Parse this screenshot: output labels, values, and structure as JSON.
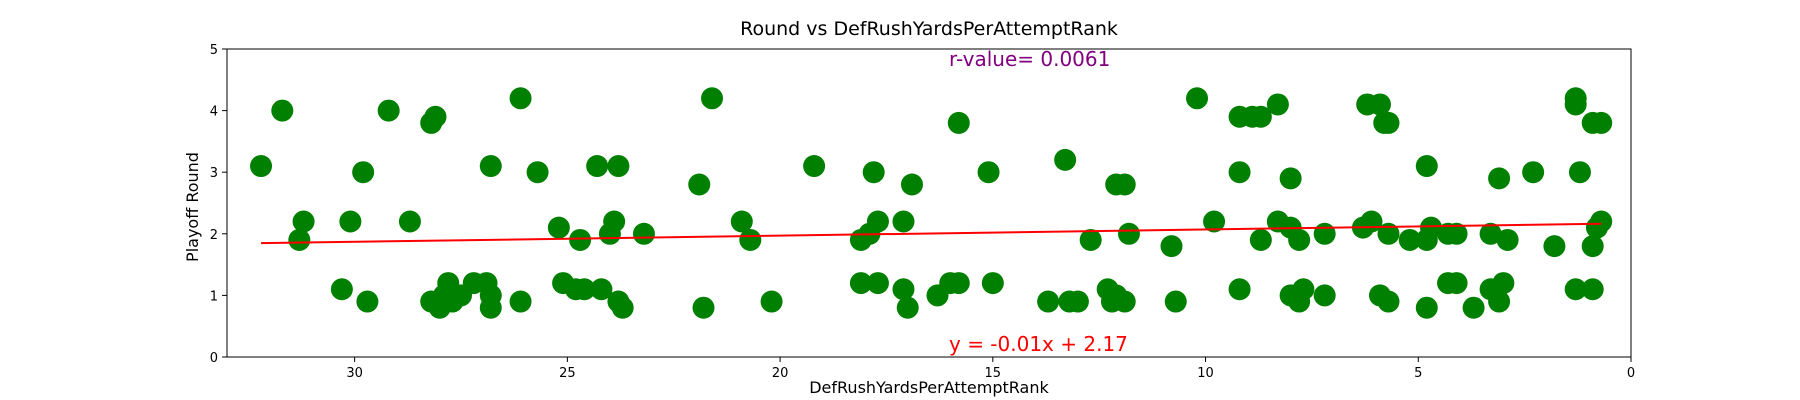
{
  "chart_data": {
    "type": "scatter",
    "title": "Round vs DefRushYardsPerAttemptRank",
    "xlabel": "DefRushYardsPerAttemptRank",
    "ylabel": "Playoff Round",
    "xlim": [
      33,
      0
    ],
    "ylim": [
      0,
      5
    ],
    "x_inverted": true,
    "xticks": [
      30,
      25,
      20,
      15,
      10,
      5,
      0
    ],
    "yticks": [
      0,
      1,
      2,
      3,
      4,
      5
    ],
    "grid": false,
    "point_color": "#008000",
    "fit_color": "#ff0000",
    "annotations": {
      "r_value": {
        "text": "r-value= 0.0061",
        "color": "#800080"
      },
      "equation": {
        "text": "y = -0.01x + 2.17",
        "color": "#ff0000"
      }
    },
    "fit_line": {
      "slope": -0.01,
      "intercept": 2.17,
      "x_range": [
        32.2,
        0.7
      ]
    },
    "points": [
      {
        "x": 32.2,
        "y": 3.1
      },
      {
        "x": 31.7,
        "y": 4.0
      },
      {
        "x": 31.3,
        "y": 1.9
      },
      {
        "x": 31.2,
        "y": 2.2
      },
      {
        "x": 30.3,
        "y": 1.1
      },
      {
        "x": 30.1,
        "y": 2.2
      },
      {
        "x": 29.8,
        "y": 3.0
      },
      {
        "x": 29.7,
        "y": 0.9
      },
      {
        "x": 29.2,
        "y": 4.0
      },
      {
        "x": 28.7,
        "y": 2.2
      },
      {
        "x": 28.2,
        "y": 0.9
      },
      {
        "x": 28.2,
        "y": 3.8
      },
      {
        "x": 28.1,
        "y": 3.9
      },
      {
        "x": 28.0,
        "y": 0.8
      },
      {
        "x": 27.9,
        "y": 1.0
      },
      {
        "x": 27.8,
        "y": 1.2
      },
      {
        "x": 27.7,
        "y": 0.9
      },
      {
        "x": 27.5,
        "y": 1.0
      },
      {
        "x": 27.2,
        "y": 1.2
      },
      {
        "x": 26.9,
        "y": 1.2
      },
      {
        "x": 26.8,
        "y": 3.1
      },
      {
        "x": 26.8,
        "y": 1.0
      },
      {
        "x": 26.8,
        "y": 0.8
      },
      {
        "x": 26.1,
        "y": 4.2
      },
      {
        "x": 26.1,
        "y": 0.9
      },
      {
        "x": 25.7,
        "y": 3.0
      },
      {
        "x": 25.2,
        "y": 2.1
      },
      {
        "x": 25.1,
        "y": 1.2
      },
      {
        "x": 24.8,
        "y": 1.1
      },
      {
        "x": 24.7,
        "y": 1.9
      },
      {
        "x": 24.6,
        "y": 1.1
      },
      {
        "x": 24.3,
        "y": 3.1
      },
      {
        "x": 24.2,
        "y": 1.1
      },
      {
        "x": 24.0,
        "y": 2.0
      },
      {
        "x": 23.9,
        "y": 2.2
      },
      {
        "x": 23.8,
        "y": 3.1
      },
      {
        "x": 23.8,
        "y": 0.9
      },
      {
        "x": 23.7,
        "y": 0.8
      },
      {
        "x": 23.2,
        "y": 2.0
      },
      {
        "x": 21.9,
        "y": 2.8
      },
      {
        "x": 21.8,
        "y": 0.8
      },
      {
        "x": 21.6,
        "y": 4.2
      },
      {
        "x": 20.9,
        "y": 2.2
      },
      {
        "x": 20.7,
        "y": 1.9
      },
      {
        "x": 20.2,
        "y": 0.9
      },
      {
        "x": 19.2,
        "y": 3.1
      },
      {
        "x": 18.1,
        "y": 1.9
      },
      {
        "x": 18.1,
        "y": 1.2
      },
      {
        "x": 17.9,
        "y": 2.0
      },
      {
        "x": 17.8,
        "y": 3.0
      },
      {
        "x": 17.7,
        "y": 2.2
      },
      {
        "x": 17.7,
        "y": 1.2
      },
      {
        "x": 17.1,
        "y": 2.2
      },
      {
        "x": 17.1,
        "y": 1.1
      },
      {
        "x": 17.0,
        "y": 0.8
      },
      {
        "x": 16.9,
        "y": 2.8
      },
      {
        "x": 16.3,
        "y": 1.0
      },
      {
        "x": 16.0,
        "y": 1.2
      },
      {
        "x": 15.8,
        "y": 3.8
      },
      {
        "x": 15.8,
        "y": 1.2
      },
      {
        "x": 15.1,
        "y": 3.0
      },
      {
        "x": 15.0,
        "y": 1.2
      },
      {
        "x": 13.7,
        "y": 0.9
      },
      {
        "x": 13.3,
        "y": 3.2
      },
      {
        "x": 13.2,
        "y": 0.9
      },
      {
        "x": 13.0,
        "y": 0.9
      },
      {
        "x": 12.7,
        "y": 1.9
      },
      {
        "x": 12.3,
        "y": 1.1
      },
      {
        "x": 12.2,
        "y": 0.9
      },
      {
        "x": 12.1,
        "y": 1.0
      },
      {
        "x": 12.1,
        "y": 2.8
      },
      {
        "x": 11.9,
        "y": 2.8
      },
      {
        "x": 11.9,
        "y": 0.9
      },
      {
        "x": 11.8,
        "y": 2.0
      },
      {
        "x": 10.8,
        "y": 1.8
      },
      {
        "x": 10.7,
        "y": 0.9
      },
      {
        "x": 10.2,
        "y": 4.2
      },
      {
        "x": 9.8,
        "y": 2.2
      },
      {
        "x": 9.2,
        "y": 3.9
      },
      {
        "x": 9.2,
        "y": 3.0
      },
      {
        "x": 9.2,
        "y": 1.1
      },
      {
        "x": 8.9,
        "y": 3.9
      },
      {
        "x": 8.7,
        "y": 3.9
      },
      {
        "x": 8.7,
        "y": 1.9
      },
      {
        "x": 8.3,
        "y": 4.1
      },
      {
        "x": 8.3,
        "y": 2.2
      },
      {
        "x": 8.0,
        "y": 2.9
      },
      {
        "x": 8.0,
        "y": 2.1
      },
      {
        "x": 8.0,
        "y": 1.0
      },
      {
        "x": 7.8,
        "y": 1.9
      },
      {
        "x": 7.8,
        "y": 0.9
      },
      {
        "x": 7.7,
        "y": 1.1
      },
      {
        "x": 7.2,
        "y": 2.0
      },
      {
        "x": 7.2,
        "y": 1.0
      },
      {
        "x": 6.2,
        "y": 4.1
      },
      {
        "x": 6.3,
        "y": 2.1
      },
      {
        "x": 6.1,
        "y": 2.2
      },
      {
        "x": 5.9,
        "y": 4.1
      },
      {
        "x": 5.9,
        "y": 1.0
      },
      {
        "x": 5.8,
        "y": 3.8
      },
      {
        "x": 5.7,
        "y": 3.8
      },
      {
        "x": 5.7,
        "y": 2.0
      },
      {
        "x": 5.7,
        "y": 0.9
      },
      {
        "x": 5.2,
        "y": 1.9
      },
      {
        "x": 4.8,
        "y": 3.1
      },
      {
        "x": 4.8,
        "y": 1.9
      },
      {
        "x": 4.8,
        "y": 0.8
      },
      {
        "x": 4.7,
        "y": 2.1
      },
      {
        "x": 4.3,
        "y": 2.0
      },
      {
        "x": 4.3,
        "y": 1.2
      },
      {
        "x": 4.1,
        "y": 2.0
      },
      {
        "x": 4.1,
        "y": 1.2
      },
      {
        "x": 3.7,
        "y": 0.8
      },
      {
        "x": 3.3,
        "y": 2.0
      },
      {
        "x": 3.3,
        "y": 1.1
      },
      {
        "x": 3.1,
        "y": 2.9
      },
      {
        "x": 3.1,
        "y": 0.9
      },
      {
        "x": 3.0,
        "y": 1.2
      },
      {
        "x": 2.9,
        "y": 1.9
      },
      {
        "x": 2.3,
        "y": 3.0
      },
      {
        "x": 1.8,
        "y": 1.8
      },
      {
        "x": 1.3,
        "y": 4.2
      },
      {
        "x": 1.3,
        "y": 4.1
      },
      {
        "x": 1.3,
        "y": 1.1
      },
      {
        "x": 1.2,
        "y": 3.0
      },
      {
        "x": 0.9,
        "y": 1.1
      },
      {
        "x": 0.9,
        "y": 3.8
      },
      {
        "x": 0.9,
        "y": 1.8
      },
      {
        "x": 0.8,
        "y": 2.1
      },
      {
        "x": 0.7,
        "y": 3.8
      },
      {
        "x": 0.7,
        "y": 2.2
      }
    ]
  }
}
